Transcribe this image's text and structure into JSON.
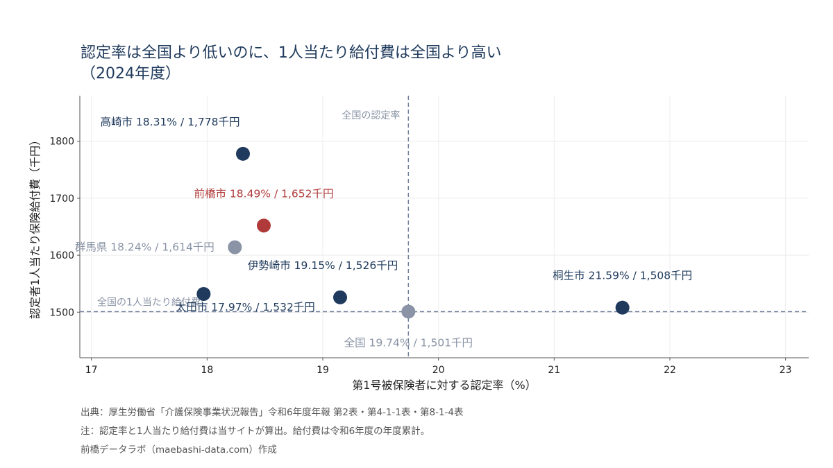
{
  "title": {
    "line1": "認定率は全国より低いのに、1人当たり給付費は全国より高い",
    "line2": "（2024年度）"
  },
  "footer": {
    "source": "出典：厚生労働省「介護保険事業状況報告」令和6年度年報 第2表・第4-1-1表・第8-1-4表",
    "note": "注：認定率と1人当たり給付費は当サイトが算出。給付費は令和6年度の年度累計。",
    "credit": "前橋データラボ（maebashi-data.com）作成"
  },
  "colors": {
    "highlight": "#b03a3a",
    "dark": "#1f3a5c",
    "muted": "#8a94a6",
    "axis": "#555555"
  },
  "chart_data": {
    "type": "scatter",
    "xlabel": "第1号被保険者に対する認定率（%）",
    "ylabel": "認定者1人当たり保険給付費（千円）",
    "xlim": [
      16.9,
      23.2
    ],
    "ylim": [
      1420,
      1880
    ],
    "xticks": [
      17,
      18,
      19,
      20,
      21,
      22,
      23
    ],
    "yticks": [
      1500,
      1600,
      1700,
      1800
    ],
    "grid": true,
    "reference_lines": [
      {
        "axis": "x",
        "value": 19.74,
        "label": "全国の認定率"
      },
      {
        "axis": "y",
        "value": 1501,
        "label": "全国の1人当たり給付費"
      }
    ],
    "points": [
      {
        "name": "高崎市",
        "x": 18.31,
        "y": 1778,
        "label": "高崎市  18.31% / 1,778千円",
        "group": "dark"
      },
      {
        "name": "前橋市",
        "x": 18.49,
        "y": 1652,
        "label": "前橋市  18.49% / 1,652千円",
        "group": "highlight"
      },
      {
        "name": "群馬県",
        "x": 18.24,
        "y": 1614,
        "label": "群馬県  18.24% / 1,614千円",
        "group": "muted"
      },
      {
        "name": "伊勢崎市",
        "x": 19.15,
        "y": 1526,
        "label": "伊勢崎市  19.15% / 1,526千円",
        "group": "dark"
      },
      {
        "name": "桐生市",
        "x": 21.59,
        "y": 1508,
        "label": "桐生市  21.59% / 1,508千円",
        "group": "dark"
      },
      {
        "name": "太田市",
        "x": 17.97,
        "y": 1532,
        "label": "太田市  17.97% / 1,532千円",
        "group": "dark"
      },
      {
        "name": "全国",
        "x": 19.74,
        "y": 1501,
        "label": "全国  19.74% / 1,501千円",
        "group": "muted"
      }
    ]
  }
}
